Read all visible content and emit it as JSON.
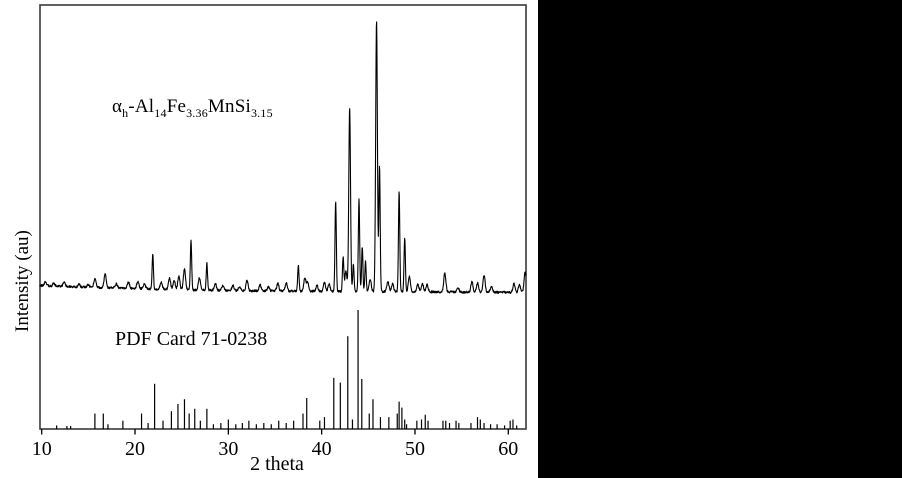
{
  "figure": {
    "background_color": "#ffffff",
    "side_panel_color": "#000000",
    "trace_color": "#000000",
    "frame_color": "#3a3a3a"
  },
  "labels": {
    "y_axis": "Intensity (au)",
    "x_axis": "2 theta",
    "pdf_card": "PDF Card 71-0238",
    "formula_segments": [
      {
        "t": "α",
        "sub": false
      },
      {
        "t": "h",
        "sub": true
      },
      {
        "t": "-Al",
        "sub": false
      },
      {
        "t": "14",
        "sub": true
      },
      {
        "t": "Fe",
        "sub": false
      },
      {
        "t": "3.36",
        "sub": true
      },
      {
        "t": "MnSi",
        "sub": false
      },
      {
        "t": "3.15",
        "sub": true
      }
    ]
  },
  "chart_data": {
    "type": "line",
    "title": "",
    "xlabel": "2 theta",
    "ylabel": "Intensity (au)",
    "xlim": [
      9.8,
      61.9
    ],
    "x_ticks": [
      10,
      20,
      30,
      40,
      50,
      60
    ],
    "grid": false,
    "legend_position": "none",
    "description": "XRD pattern (top, continuous trace) of alpha-h Al14Fe3.36MnSi3.15 compared with reference stick pattern PDF Card 71-0238 (bottom). Intensities are relative (0-100) in arbitrary units.",
    "series": [
      {
        "name": "αh-Al14Fe3.36MnSi3.15 measured pattern",
        "style": "continuous",
        "peaks": [
          [
            10.4,
            1.5
          ],
          [
            11.3,
            1.0
          ],
          [
            12.4,
            1.5
          ],
          [
            14.0,
            1.0
          ],
          [
            15.0,
            1.0
          ],
          [
            15.7,
            3.3
          ],
          [
            16.8,
            5.0
          ],
          [
            18.0,
            1.5
          ],
          [
            19.3,
            2.2
          ],
          [
            20.3,
            2.6
          ],
          [
            21.0,
            1.8
          ],
          [
            21.9,
            12.9
          ],
          [
            22.8,
            2.6
          ],
          [
            23.7,
            4.0
          ],
          [
            24.2,
            3.3
          ],
          [
            24.7,
            4.8
          ],
          [
            25.3,
            7.7
          ],
          [
            26.0,
            18.4
          ],
          [
            26.9,
            4.4
          ],
          [
            27.7,
            9.9
          ],
          [
            28.6,
            2.6
          ],
          [
            29.4,
            1.8
          ],
          [
            30.5,
            1.8
          ],
          [
            31.2,
            1.5
          ],
          [
            32.0,
            3.7
          ],
          [
            33.4,
            2.2
          ],
          [
            34.3,
            1.5
          ],
          [
            35.3,
            2.9
          ],
          [
            36.2,
            2.9
          ],
          [
            37.5,
            9.6
          ],
          [
            38.2,
            4.8
          ],
          [
            38.5,
            3.3
          ],
          [
            39.5,
            2.2
          ],
          [
            40.3,
            3.3
          ],
          [
            40.8,
            2.6
          ],
          [
            41.5,
            33.5
          ],
          [
            42.3,
            12.5
          ],
          [
            42.6,
            7.4
          ],
          [
            43.0,
            67.3
          ],
          [
            43.4,
            10.3
          ],
          [
            44.0,
            34.2
          ],
          [
            44.35,
            16.5
          ],
          [
            44.7,
            11.0
          ],
          [
            45.2,
            4.4
          ],
          [
            45.88,
            100.0
          ],
          [
            46.2,
            46.0
          ],
          [
            47.1,
            3.7
          ],
          [
            47.6,
            2.9
          ],
          [
            48.3,
            36.8
          ],
          [
            48.9,
            20.2
          ],
          [
            49.4,
            5.5
          ],
          [
            50.3,
            2.9
          ],
          [
            50.8,
            2.9
          ],
          [
            51.3,
            2.6
          ],
          [
            53.2,
            7.0
          ],
          [
            54.6,
            1.8
          ],
          [
            56.1,
            3.7
          ],
          [
            56.7,
            3.3
          ],
          [
            57.4,
            6.3
          ],
          [
            58.2,
            2.2
          ],
          [
            60.6,
            3.3
          ],
          [
            61.2,
            2.9
          ],
          [
            61.8,
            7.4
          ]
        ]
      },
      {
        "name": "PDF Card 71-0238 reference",
        "style": "sticks",
        "peaks": [
          [
            11.6,
            3
          ],
          [
            12.7,
            2.5
          ],
          [
            13.1,
            2.5
          ],
          [
            15.7,
            13
          ],
          [
            16.6,
            13
          ],
          [
            17.1,
            4
          ],
          [
            18.7,
            7
          ],
          [
            20.7,
            13
          ],
          [
            21.4,
            5
          ],
          [
            22.1,
            38
          ],
          [
            23.0,
            7
          ],
          [
            23.9,
            15
          ],
          [
            24.6,
            21
          ],
          [
            25.3,
            25
          ],
          [
            25.8,
            13
          ],
          [
            26.4,
            17
          ],
          [
            27.0,
            7
          ],
          [
            27.7,
            17
          ],
          [
            28.4,
            4
          ],
          [
            29.2,
            5
          ],
          [
            30.0,
            8
          ],
          [
            30.8,
            4
          ],
          [
            31.5,
            5
          ],
          [
            32.2,
            7
          ],
          [
            33.0,
            4
          ],
          [
            33.8,
            5
          ],
          [
            34.6,
            4
          ],
          [
            35.4,
            7
          ],
          [
            36.2,
            5
          ],
          [
            37.0,
            7
          ],
          [
            38.0,
            13
          ],
          [
            38.4,
            26
          ],
          [
            39.8,
            7
          ],
          [
            40.3,
            10
          ],
          [
            41.3,
            43
          ],
          [
            42.0,
            39
          ],
          [
            42.8,
            78
          ],
          [
            43.3,
            8
          ],
          [
            43.9,
            100
          ],
          [
            44.3,
            42
          ],
          [
            45.1,
            13
          ],
          [
            45.5,
            25
          ],
          [
            46.3,
            10
          ],
          [
            47.2,
            10
          ],
          [
            48.1,
            13
          ],
          [
            48.3,
            23
          ],
          [
            48.6,
            18
          ],
          [
            48.9,
            8
          ],
          [
            49.1,
            4
          ],
          [
            50.2,
            7
          ],
          [
            50.7,
            8
          ],
          [
            51.1,
            12
          ],
          [
            51.4,
            7
          ],
          [
            53.0,
            7
          ],
          [
            53.3,
            7
          ],
          [
            53.7,
            5
          ],
          [
            54.4,
            7
          ],
          [
            54.7,
            5
          ],
          [
            56.0,
            5
          ],
          [
            56.7,
            10
          ],
          [
            57.0,
            8
          ],
          [
            57.4,
            5
          ],
          [
            58.1,
            4
          ],
          [
            58.8,
            4
          ],
          [
            59.6,
            3
          ],
          [
            60.2,
            7
          ],
          [
            60.5,
            8
          ],
          [
            60.9,
            3
          ]
        ]
      }
    ]
  }
}
